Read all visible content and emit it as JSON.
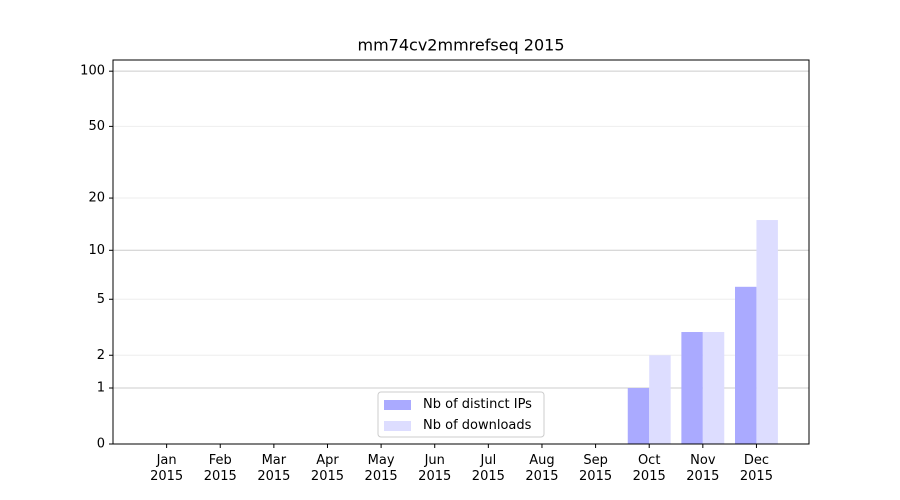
{
  "chart_data": {
    "type": "bar",
    "title": "mm74cv2mmrefseq 2015",
    "categories": [
      "Jan\n2015",
      "Feb\n2015",
      "Mar\n2015",
      "Apr\n2015",
      "May\n2015",
      "Jun\n2015",
      "Jul\n2015",
      "Aug\n2015",
      "Sep\n2015",
      "Oct\n2015",
      "Nov\n2015",
      "Dec\n2015"
    ],
    "series": [
      {
        "name": "Nb of distinct IPs",
        "color": "#aaaaff",
        "values": [
          0,
          0,
          0,
          0,
          0,
          0,
          0,
          0,
          0,
          1,
          3,
          6
        ]
      },
      {
        "name": "Nb of downloads",
        "color": "#ddddff",
        "values": [
          0,
          0,
          0,
          0,
          0,
          0,
          0,
          0,
          0,
          2,
          3,
          15
        ]
      }
    ],
    "yscale": "log1p",
    "ylim": [
      0,
      115
    ],
    "yticks": [
      0,
      1,
      2,
      5,
      10,
      20,
      50,
      100
    ],
    "grid": true,
    "legend": "lower center"
  }
}
